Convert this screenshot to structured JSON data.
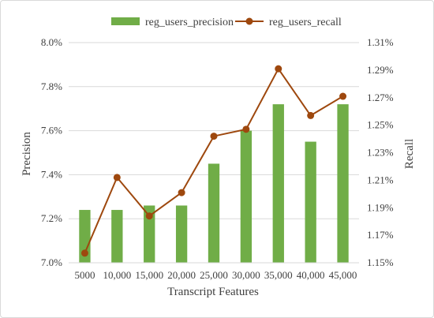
{
  "chart_data": {
    "type": "bar+line",
    "categories": [
      "5000",
      "10,000",
      "15,000",
      "20,000",
      "25,000",
      "30,000",
      "35,000",
      "40,000",
      "45,000"
    ],
    "series": [
      {
        "name": "reg_users_precision",
        "type": "bar",
        "axis": "left",
        "color": "#70ad47",
        "values": [
          7.24,
          7.24,
          7.26,
          7.26,
          7.45,
          7.6,
          7.72,
          7.55,
          7.72
        ]
      },
      {
        "name": "reg_users_recall",
        "type": "line",
        "axis": "right",
        "color": "#9e480e",
        "values": [
          1.157,
          1.212,
          1.184,
          1.201,
          1.242,
          1.247,
          1.291,
          1.257,
          1.271
        ]
      }
    ],
    "xlabel": "Transcript Features",
    "ylabel_left": "Precision",
    "ylabel_right": "Recall",
    "ylim_left": [
      7.0,
      8.0
    ],
    "ylim_right": [
      1.15,
      1.31
    ],
    "yticks_left": [
      "7.0%",
      "7.2%",
      "7.4%",
      "7.6%",
      "7.8%",
      "8.0%"
    ],
    "yticks_right": [
      "1.15%",
      "1.17%",
      "1.19%",
      "1.21%",
      "1.23%",
      "1.25%",
      "1.27%",
      "1.29%",
      "1.31%"
    ],
    "grid": true,
    "legend_position": "top"
  }
}
